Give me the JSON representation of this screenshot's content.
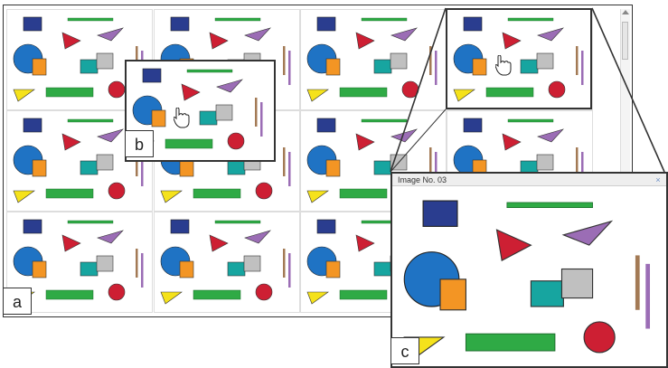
{
  "panel_labels": {
    "a": "a",
    "b": "b",
    "c": "c"
  },
  "zoom_window": {
    "title": "Image No. 03",
    "close_glyph": "×"
  },
  "icons": {
    "cursor": "hand-cursor-icon",
    "close": "close-icon"
  },
  "colors": {
    "blue_square": "#2a3d8f",
    "blue_circle": "#1f73c4",
    "orange": "#f39524",
    "red": "#cd1f33",
    "purple": "#9b6db5",
    "brown": "#a37a55",
    "teal": "#17a5a0",
    "grey": "#c0c0c0",
    "green": "#2faa45",
    "yellow": "#f5e21b",
    "border_dark": "#333333"
  }
}
